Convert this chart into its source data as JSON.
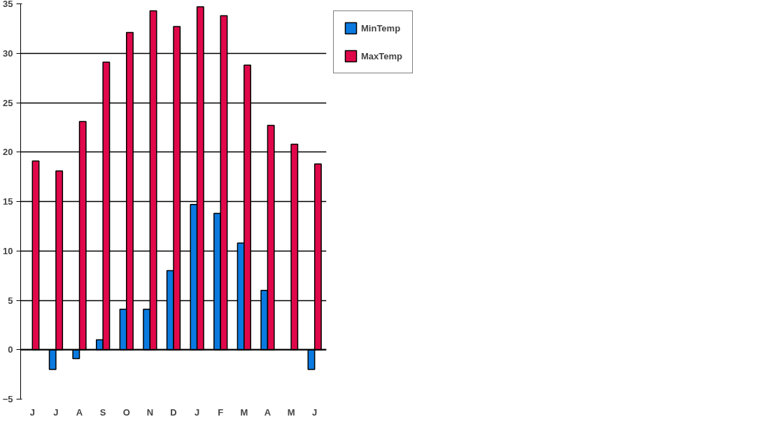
{
  "chart_data": {
    "type": "bar",
    "categories": [
      "J",
      "J",
      "A",
      "S",
      "O",
      "N",
      "D",
      "J",
      "F",
      "M",
      "A",
      "M",
      "J"
    ],
    "series": [
      {
        "name": "MinTemp",
        "color": "#0a7ae0",
        "values": [
          null,
          -2.0,
          -0.9,
          1.0,
          4.1,
          4.1,
          8.0,
          14.7,
          13.8,
          10.8,
          6.0,
          null,
          -2.0
        ]
      },
      {
        "name": "MaxTemp",
        "color": "#e0084a",
        "values": [
          19.1,
          18.1,
          23.1,
          29.1,
          32.1,
          34.3,
          32.7,
          34.7,
          33.8,
          28.8,
          22.7,
          20.8,
          18.8
        ]
      }
    ],
    "ylim": [
      -5,
      35
    ],
    "yticks": [
      -5,
      0,
      5,
      10,
      15,
      20,
      25,
      30,
      35
    ],
    "grid": "y",
    "legend": "top right"
  }
}
